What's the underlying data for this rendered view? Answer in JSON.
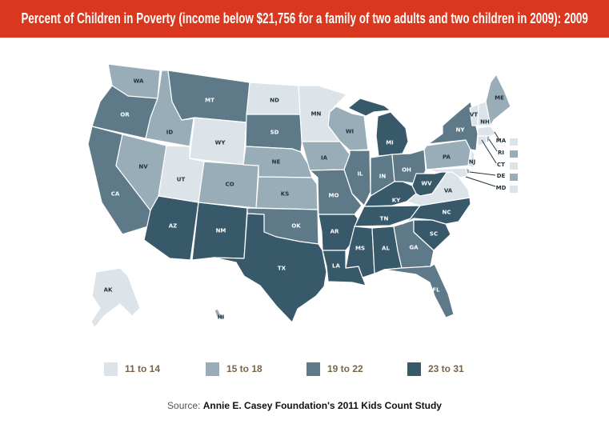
{
  "title": "Percent of Children in Poverty (income below $21,756 for a family of two adults and two children in 2009): 2009",
  "colors": {
    "title_bg": "#d9381f",
    "bins": [
      "#dce4ea",
      "#98adb8",
      "#5e7a89",
      "#37596a"
    ]
  },
  "legend": [
    {
      "label": "11 to 14",
      "bin": 0
    },
    {
      "label": "15 to 18",
      "bin": 1
    },
    {
      "label": "19 to 22",
      "bin": 2
    },
    {
      "label": "23 to 31",
      "bin": 3
    }
  ],
  "states": [
    {
      "code": "WA",
      "bin": 1
    },
    {
      "code": "OR",
      "bin": 2
    },
    {
      "code": "CA",
      "bin": 2
    },
    {
      "code": "NV",
      "bin": 1
    },
    {
      "code": "ID",
      "bin": 1
    },
    {
      "code": "MT",
      "bin": 2
    },
    {
      "code": "WY",
      "bin": 0
    },
    {
      "code": "UT",
      "bin": 0
    },
    {
      "code": "AZ",
      "bin": 3
    },
    {
      "code": "CO",
      "bin": 1
    },
    {
      "code": "NM",
      "bin": 3
    },
    {
      "code": "ND",
      "bin": 0
    },
    {
      "code": "SD",
      "bin": 2
    },
    {
      "code": "NE",
      "bin": 1
    },
    {
      "code": "KS",
      "bin": 1
    },
    {
      "code": "OK",
      "bin": 2
    },
    {
      "code": "TX",
      "bin": 3
    },
    {
      "code": "MN",
      "bin": 0
    },
    {
      "code": "IA",
      "bin": 1
    },
    {
      "code": "MO",
      "bin": 2
    },
    {
      "code": "AR",
      "bin": 3
    },
    {
      "code": "LA",
      "bin": 3
    },
    {
      "code": "WI",
      "bin": 1
    },
    {
      "code": "IL",
      "bin": 2
    },
    {
      "code": "MI",
      "bin": 3
    },
    {
      "code": "IN",
      "bin": 2
    },
    {
      "code": "OH",
      "bin": 2
    },
    {
      "code": "KY",
      "bin": 3
    },
    {
      "code": "TN",
      "bin": 3
    },
    {
      "code": "MS",
      "bin": 3
    },
    {
      "code": "AL",
      "bin": 3
    },
    {
      "code": "GA",
      "bin": 2
    },
    {
      "code": "FL",
      "bin": 2
    },
    {
      "code": "SC",
      "bin": 3
    },
    {
      "code": "NC",
      "bin": 3
    },
    {
      "code": "VA",
      "bin": 0
    },
    {
      "code": "WV",
      "bin": 3
    },
    {
      "code": "PA",
      "bin": 1
    },
    {
      "code": "NY",
      "bin": 2
    },
    {
      "code": "VT",
      "bin": 0
    },
    {
      "code": "NH",
      "bin": 0
    },
    {
      "code": "ME",
      "bin": 1
    },
    {
      "code": "MA",
      "bin": 0
    },
    {
      "code": "RI",
      "bin": 1
    },
    {
      "code": "CT",
      "bin": 0
    },
    {
      "code": "NJ",
      "bin": 0
    },
    {
      "code": "DE",
      "bin": 1
    },
    {
      "code": "MD",
      "bin": 0
    },
    {
      "code": "AK",
      "bin": 0
    },
    {
      "code": "HI",
      "bin": 1
    }
  ],
  "source": {
    "prefix": "Source:",
    "text": "Annie E. Casey Foundation's 2011 Kids Count Study"
  }
}
